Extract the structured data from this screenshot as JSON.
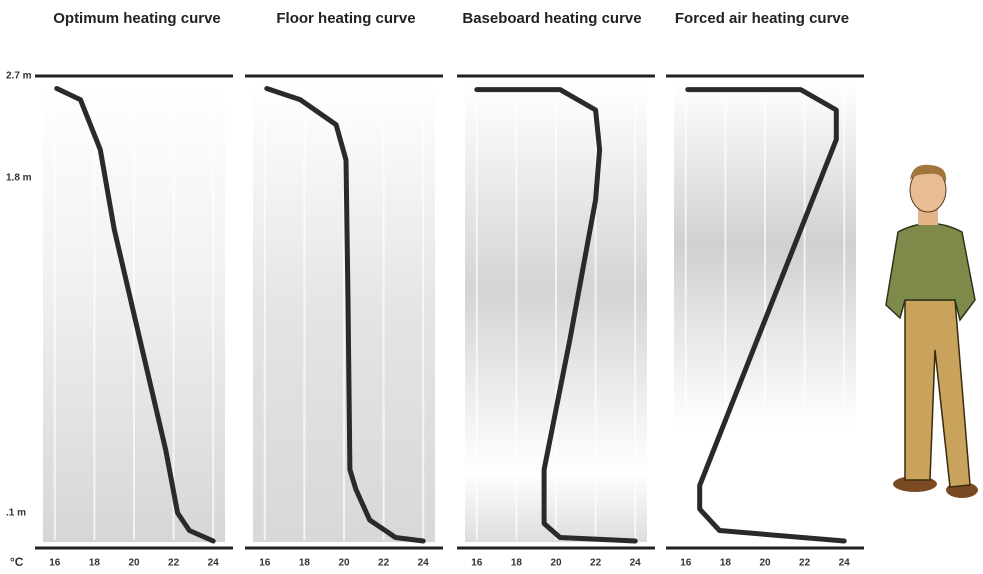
{
  "chart_data": [
    {
      "type": "line",
      "title": "Optimum heating curve",
      "xlabel": "°C",
      "x": [
        16.1,
        17.3,
        18.3,
        19.0,
        20.3,
        21.6,
        22.2,
        22.8,
        24.0
      ],
      "values": [
        2.59,
        2.49,
        2.05,
        1.54,
        0.98,
        0.42,
        0.1,
        0.05,
        0.02
      ],
      "xlim": [
        15,
        25
      ],
      "ylim": [
        0,
        2.7
      ],
      "xticks": [
        16,
        18,
        20,
        22,
        24
      ],
      "yticks": [
        {
          "value": 0.1,
          "label": ".1 m"
        },
        {
          "value": 1.8,
          "label": "1.8 m"
        },
        {
          "value": 2.7,
          "label": "2.7 m"
        }
      ],
      "color": "#2a2a2a",
      "grid": true
    },
    {
      "type": "line",
      "title": "Floor heating curve",
      "x": [
        16.1,
        17.8,
        19.6,
        20.1,
        20.2,
        20.3,
        20.6,
        21.3,
        22.6,
        24.0
      ],
      "values": [
        2.59,
        2.49,
        2.27,
        1.96,
        1.18,
        0.32,
        0.22,
        0.08,
        0.03,
        0.02
      ],
      "xlim": [
        15,
        25
      ],
      "ylim": [
        0,
        2.7
      ],
      "xticks": [
        16,
        18,
        20,
        22,
        24
      ],
      "color": "#2a2a2a",
      "grid": true
    },
    {
      "type": "line",
      "title": "Baseboard heating curve",
      "x": [
        16.0,
        20.2,
        22.0,
        22.2,
        22.0,
        20.7,
        19.4,
        19.4,
        20.2,
        24.0
      ],
      "values": [
        2.58,
        2.58,
        2.4,
        2.05,
        1.69,
        0.98,
        0.32,
        0.07,
        0.03,
        0.02
      ],
      "xlim": [
        15,
        25
      ],
      "ylim": [
        0,
        2.7
      ],
      "xticks": [
        16,
        18,
        20,
        22,
        24
      ],
      "color": "#2a2a2a",
      "grid": true
    },
    {
      "type": "line",
      "title": "Forced air heating curve",
      "x": [
        16.1,
        21.8,
        23.6,
        23.6,
        16.7,
        16.7,
        17.7,
        24.0
      ],
      "values": [
        2.58,
        2.58,
        2.4,
        2.14,
        0.24,
        0.12,
        0.05,
        0.02
      ],
      "xlim": [
        15,
        25
      ],
      "ylim": [
        0,
        2.7
      ],
      "xticks": [
        16,
        18,
        20,
        22,
        24
      ],
      "color": "#2a2a2a",
      "grid": true
    }
  ]
}
